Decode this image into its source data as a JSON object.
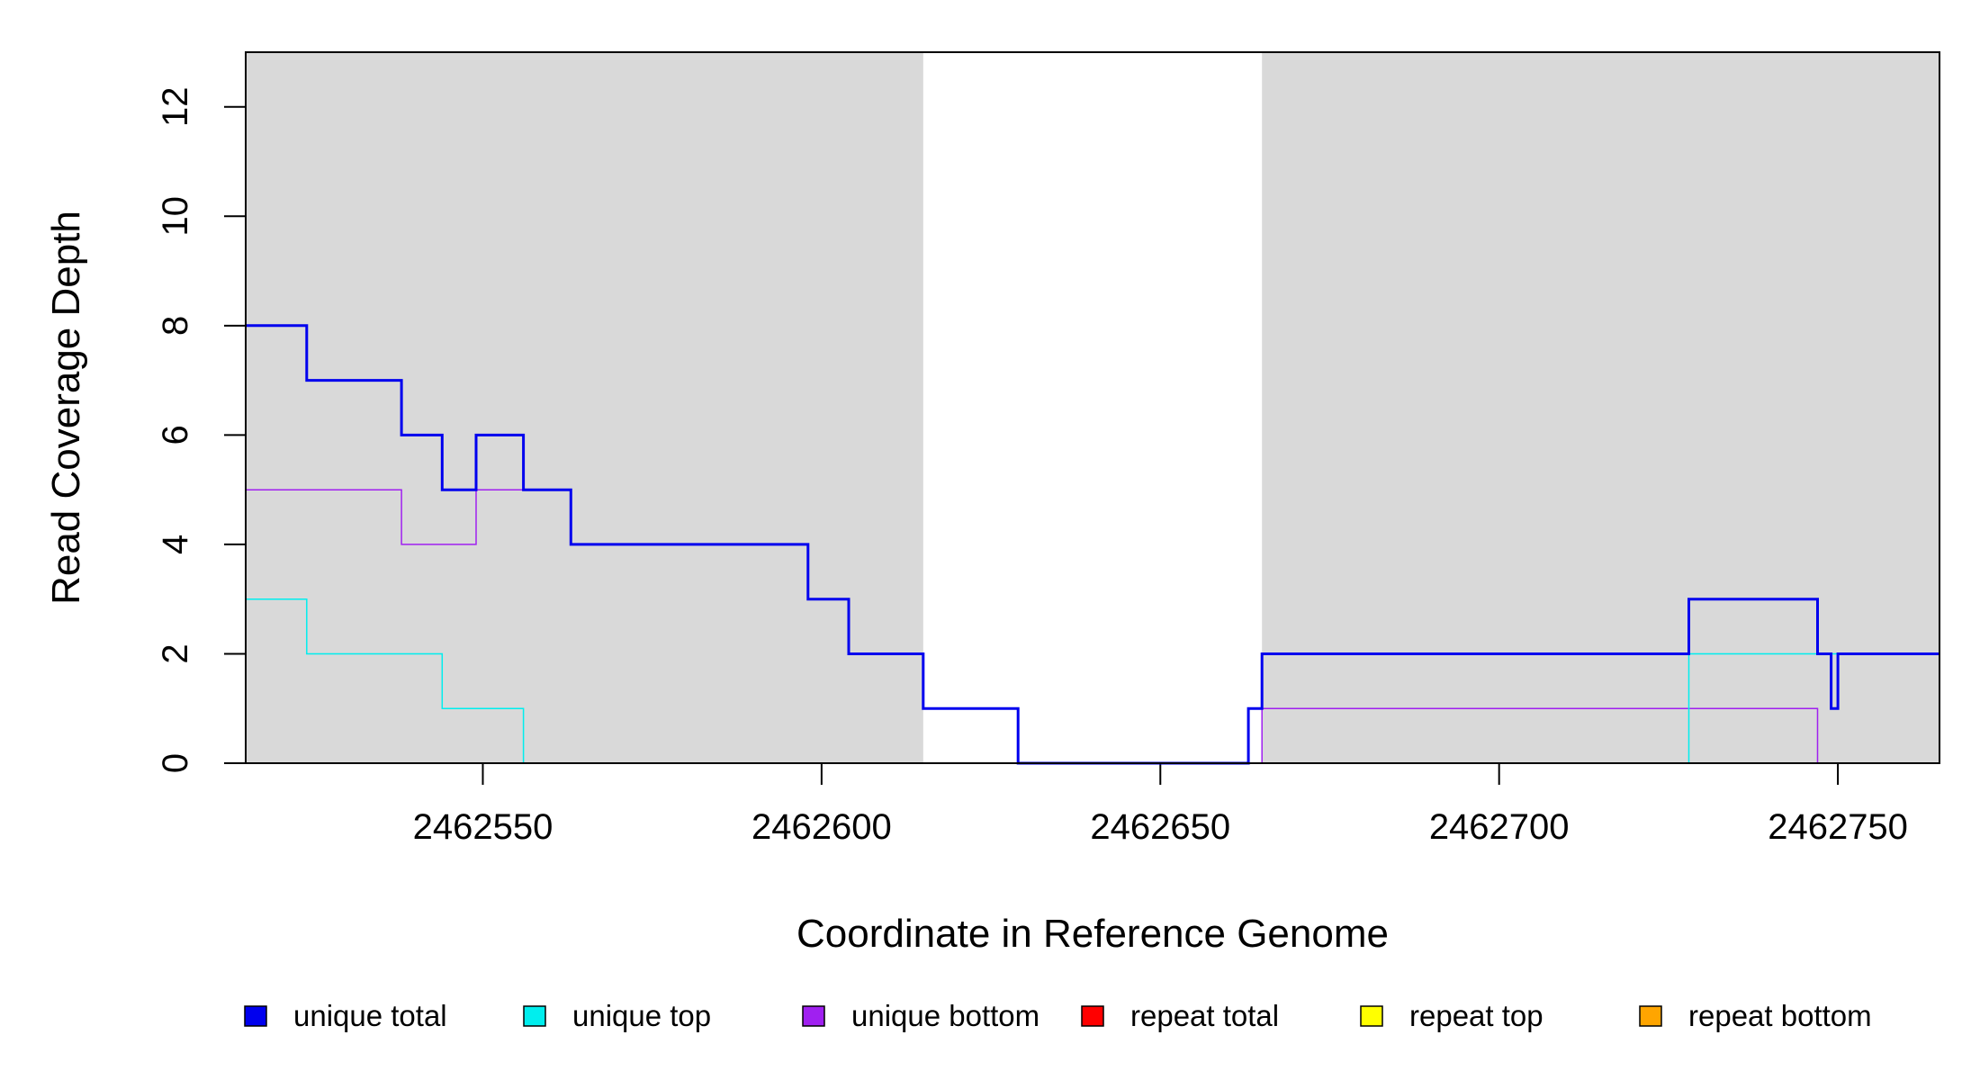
{
  "chart_data": {
    "type": "line",
    "step": true,
    "xlabel": "Coordinate in Reference Genome",
    "ylabel": "Read Coverage Depth",
    "xlim": [
      2462515,
      2462765
    ],
    "ylim": [
      0,
      13
    ],
    "xticks": [
      2462550,
      2462600,
      2462650,
      2462700,
      2462750
    ],
    "yticks": [
      0,
      2,
      4,
      6,
      8,
      10,
      12
    ],
    "shaded_regions": [
      [
        2462515,
        2462615
      ],
      [
        2462665,
        2462765
      ]
    ],
    "shade_color": "#d9d9d9",
    "legend_position": "bottom",
    "series": [
      {
        "name": "unique total",
        "color": "#0000ee",
        "width": 3,
        "points": [
          [
            2462515,
            8
          ],
          [
            2462524,
            8
          ],
          [
            2462524,
            7
          ],
          [
            2462538,
            7
          ],
          [
            2462538,
            6
          ],
          [
            2462544,
            6
          ],
          [
            2462544,
            5
          ],
          [
            2462549,
            5
          ],
          [
            2462549,
            6
          ],
          [
            2462556,
            6
          ],
          [
            2462556,
            5
          ],
          [
            2462563,
            5
          ],
          [
            2462563,
            4
          ],
          [
            2462598,
            4
          ],
          [
            2462598,
            3
          ],
          [
            2462604,
            3
          ],
          [
            2462604,
            2
          ],
          [
            2462615,
            2
          ],
          [
            2462615,
            1
          ],
          [
            2462629,
            1
          ],
          [
            2462629,
            0
          ],
          [
            2462663,
            0
          ],
          [
            2462663,
            1
          ],
          [
            2462665,
            1
          ],
          [
            2462665,
            2
          ],
          [
            2462728,
            2
          ],
          [
            2462728,
            3
          ],
          [
            2462747,
            3
          ],
          [
            2462747,
            2
          ],
          [
            2462749,
            2
          ],
          [
            2462749,
            1
          ],
          [
            2462750,
            1
          ],
          [
            2462750,
            2
          ],
          [
            2462765,
            2
          ]
        ]
      },
      {
        "name": "unique top",
        "color": "#00eeee",
        "width": 1.5,
        "points": [
          [
            2462515,
            3
          ],
          [
            2462524,
            3
          ],
          [
            2462524,
            2
          ],
          [
            2462544,
            2
          ],
          [
            2462544,
            1
          ],
          [
            2462556,
            1
          ],
          [
            2462556,
            0
          ],
          [
            2462728,
            0
          ],
          [
            2462728,
            2
          ],
          [
            2462765,
            2
          ]
        ]
      },
      {
        "name": "unique bottom",
        "color": "#a020f0",
        "width": 1.5,
        "points": [
          [
            2462515,
            5
          ],
          [
            2462538,
            5
          ],
          [
            2462538,
            4
          ],
          [
            2462549,
            4
          ],
          [
            2462549,
            5
          ],
          [
            2462563,
            5
          ],
          [
            2462563,
            4
          ],
          [
            2462598,
            4
          ],
          [
            2462598,
            3
          ],
          [
            2462604,
            3
          ],
          [
            2462604,
            2
          ],
          [
            2462615,
            2
          ],
          [
            2462615,
            1
          ],
          [
            2462629,
            1
          ],
          [
            2462629,
            0
          ],
          [
            2462665,
            0
          ],
          [
            2462665,
            1
          ],
          [
            2462747,
            1
          ],
          [
            2462747,
            0
          ],
          [
            2462765,
            0
          ]
        ]
      },
      {
        "name": "repeat total",
        "color": "#ff0000",
        "width": 1.5,
        "points": [
          [
            2462515,
            0
          ],
          [
            2462765,
            0
          ]
        ]
      },
      {
        "name": "repeat top",
        "color": "#ffff00",
        "width": 1.5,
        "points": [
          [
            2462515,
            0
          ],
          [
            2462765,
            0
          ]
        ]
      },
      {
        "name": "repeat bottom",
        "color": "#ffa500",
        "width": 1.5,
        "points": [
          [
            2462515,
            0
          ],
          [
            2462765,
            0
          ]
        ]
      }
    ]
  }
}
